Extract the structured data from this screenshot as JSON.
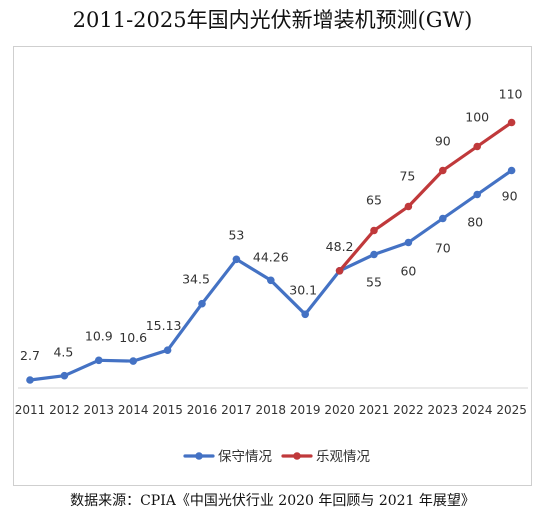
{
  "title": "2011-2025年国内光伏新增装机预测(GW)",
  "source": "数据来源：CPIA《中国光伏行业 2020 年回顾与 2021 年展望》",
  "chart_data": {
    "type": "line",
    "categories": [
      "2011",
      "2012",
      "2013",
      "2014",
      "2015",
      "2016",
      "2017",
      "2018",
      "2019",
      "2020",
      "2021",
      "2022",
      "2023",
      "2024",
      "2025"
    ],
    "ylim": [
      0,
      120
    ],
    "grid": false,
    "legend_position": "bottom",
    "series": [
      {
        "name": "保守情况",
        "color": "#4472c4",
        "values": [
          2.7,
          4.5,
          10.9,
          10.6,
          15.13,
          34.5,
          53,
          44.26,
          30.1,
          48.2,
          55,
          60,
          70,
          80,
          90
        ],
        "labels": [
          "2.7",
          "4.5",
          "10.9",
          "10.6",
          "15.13",
          "34.5",
          "53",
          "44.26",
          "30.1",
          "48.2",
          "55",
          "60",
          "70",
          "80",
          "90"
        ]
      },
      {
        "name": "乐观情况",
        "color": "#c0393b",
        "values": [
          null,
          null,
          null,
          null,
          null,
          null,
          null,
          null,
          null,
          48.2,
          65,
          75,
          90,
          100,
          110
        ],
        "labels": [
          null,
          null,
          null,
          null,
          null,
          null,
          null,
          null,
          null,
          null,
          "65",
          "75",
          "90",
          "100",
          "110"
        ]
      }
    ]
  }
}
